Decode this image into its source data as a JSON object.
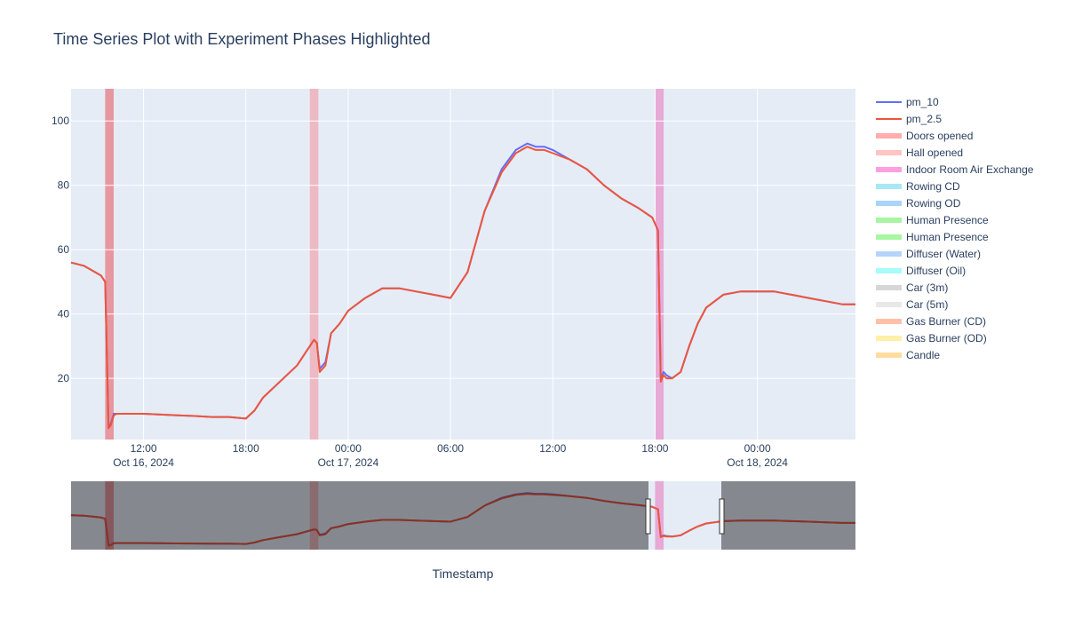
{
  "chart_data": {
    "type": "line",
    "title": "Time Series Plot with Experiment Phases Highlighted",
    "xlabel": "Timestamp",
    "ylabel": "",
    "x_range": [
      "2024-10-16 07:45",
      "2024-10-18 05:45"
    ],
    "ylim": [
      1,
      110
    ],
    "grid": true,
    "legend_position": "right",
    "x_ticks": [
      {
        "x": "2024-10-16 12:00",
        "line1": "12:00",
        "line2": "Oct 16, 2024"
      },
      {
        "x": "2024-10-16 18:00",
        "line1": "18:00",
        "line2": ""
      },
      {
        "x": "2024-10-17 00:00",
        "line1": "00:00",
        "line2": "Oct 17, 2024"
      },
      {
        "x": "2024-10-17 06:00",
        "line1": "06:00",
        "line2": ""
      },
      {
        "x": "2024-10-17 12:00",
        "line1": "12:00",
        "line2": ""
      },
      {
        "x": "2024-10-17 18:00",
        "line1": "18:00",
        "line2": ""
      },
      {
        "x": "2024-10-18 00:00",
        "line1": "00:00",
        "line2": "Oct 18, 2024"
      }
    ],
    "y_ticks": [
      20,
      40,
      60,
      80,
      100
    ],
    "series": [
      {
        "name": "pm_10",
        "color": "#636efa",
        "x": [
          "2024-10-16 07:45",
          "2024-10-16 08:30",
          "2024-10-16 09:30",
          "2024-10-16 09:45",
          "2024-10-16 09:57",
          "2024-10-16 10:05",
          "2024-10-16 10:15",
          "2024-10-16 10:25",
          "2024-10-16 10:35",
          "2024-10-16 10:50",
          "2024-10-16 11:30",
          "2024-10-16 12:00",
          "2024-10-16 14:00",
          "2024-10-16 15:00",
          "2024-10-16 16:00",
          "2024-10-16 17:00",
          "2024-10-16 18:00",
          "2024-10-16 18:30",
          "2024-10-16 19:00",
          "2024-10-16 20:00",
          "2024-10-16 21:00",
          "2024-10-16 21:30",
          "2024-10-16 22:00",
          "2024-10-16 22:10",
          "2024-10-16 22:20",
          "2024-10-16 22:40",
          "2024-10-16 23:00",
          "2024-10-16 23:30",
          "2024-10-17 00:00",
          "2024-10-17 01:00",
          "2024-10-17 02:00",
          "2024-10-17 03:00",
          "2024-10-17 04:00",
          "2024-10-17 05:00",
          "2024-10-17 06:00",
          "2024-10-17 07:00",
          "2024-10-17 08:00",
          "2024-10-17 09:00",
          "2024-10-17 09:50",
          "2024-10-17 10:30",
          "2024-10-17 11:00",
          "2024-10-17 11:30",
          "2024-10-17 12:00",
          "2024-10-17 13:00",
          "2024-10-17 14:00",
          "2024-10-17 15:00",
          "2024-10-17 16:00",
          "2024-10-17 17:00",
          "2024-10-17 17:50",
          "2024-10-17 18:10",
          "2024-10-17 18:20",
          "2024-10-17 18:30",
          "2024-10-17 18:40",
          "2024-10-17 19:00",
          "2024-10-17 19:30",
          "2024-10-17 20:00",
          "2024-10-17 20:30",
          "2024-10-17 21:00",
          "2024-10-17 22:00",
          "2024-10-17 23:00",
          "2024-10-18 00:00",
          "2024-10-18 01:00",
          "2024-10-18 02:00",
          "2024-10-18 03:00",
          "2024-10-18 04:00",
          "2024-10-18 05:00",
          "2024-10-18 05:45"
        ],
        "values": [
          56,
          55,
          52,
          50,
          5,
          6,
          9,
          9,
          9,
          9,
          9,
          9,
          8.5,
          8.3,
          8,
          8,
          7.5,
          10,
          14,
          19,
          24,
          28,
          32,
          31,
          23,
          25,
          34,
          37,
          41,
          45,
          48,
          48,
          47,
          46,
          45,
          53,
          72,
          85,
          91,
          93,
          92,
          92,
          91,
          88,
          85,
          80,
          76,
          73,
          70,
          66,
          20,
          22,
          21,
          20,
          22,
          30,
          37,
          42,
          46,
          47,
          47,
          47,
          46,
          45,
          44,
          43,
          43
        ]
      },
      {
        "name": "pm_2.5",
        "color": "#ef553b",
        "x": [
          "2024-10-16 07:45",
          "2024-10-16 08:30",
          "2024-10-16 09:30",
          "2024-10-16 09:45",
          "2024-10-16 09:57",
          "2024-10-16 10:05",
          "2024-10-16 10:15",
          "2024-10-16 10:25",
          "2024-10-16 10:35",
          "2024-10-16 10:50",
          "2024-10-16 11:30",
          "2024-10-16 12:00",
          "2024-10-16 14:00",
          "2024-10-16 15:00",
          "2024-10-16 16:00",
          "2024-10-16 17:00",
          "2024-10-16 18:00",
          "2024-10-16 18:30",
          "2024-10-16 19:00",
          "2024-10-16 20:00",
          "2024-10-16 21:00",
          "2024-10-16 21:30",
          "2024-10-16 22:00",
          "2024-10-16 22:10",
          "2024-10-16 22:20",
          "2024-10-16 22:40",
          "2024-10-16 23:00",
          "2024-10-16 23:30",
          "2024-10-17 00:00",
          "2024-10-17 01:00",
          "2024-10-17 02:00",
          "2024-10-17 03:00",
          "2024-10-17 04:00",
          "2024-10-17 05:00",
          "2024-10-17 06:00",
          "2024-10-17 07:00",
          "2024-10-17 08:00",
          "2024-10-17 09:00",
          "2024-10-17 09:50",
          "2024-10-17 10:30",
          "2024-10-17 11:00",
          "2024-10-17 11:30",
          "2024-10-17 12:00",
          "2024-10-17 13:00",
          "2024-10-17 14:00",
          "2024-10-17 15:00",
          "2024-10-17 16:00",
          "2024-10-17 17:00",
          "2024-10-17 17:50",
          "2024-10-17 18:10",
          "2024-10-17 18:20",
          "2024-10-17 18:30",
          "2024-10-17 18:40",
          "2024-10-17 19:00",
          "2024-10-17 19:30",
          "2024-10-17 20:00",
          "2024-10-17 20:30",
          "2024-10-17 21:00",
          "2024-10-17 22:00",
          "2024-10-17 23:00",
          "2024-10-18 00:00",
          "2024-10-18 01:00",
          "2024-10-18 02:00",
          "2024-10-18 03:00",
          "2024-10-18 04:00",
          "2024-10-18 05:00",
          "2024-10-18 05:45"
        ],
        "values": [
          56,
          55,
          52,
          50,
          4.5,
          5.5,
          8.5,
          9,
          9,
          9,
          9,
          9,
          8.5,
          8.3,
          8,
          8,
          7.5,
          10,
          14,
          19,
          24,
          28,
          32,
          31,
          22,
          24,
          34,
          37,
          41,
          45,
          48,
          48,
          47,
          46,
          45,
          53,
          72,
          84,
          90,
          92,
          91,
          91,
          90,
          88,
          85,
          80,
          76,
          73,
          70,
          66,
          19,
          21,
          20,
          20,
          22,
          30,
          37,
          42,
          46,
          47,
          47,
          47,
          46,
          45,
          44,
          43,
          43
        ]
      }
    ],
    "phases": [
      {
        "name": "Doors opened",
        "start": "2024-10-16 09:45",
        "end": "2024-10-16 10:15",
        "color": "#e8888f"
      },
      {
        "name": "Hall opened",
        "start": "2024-10-16 21:45",
        "end": "2024-10-16 22:15",
        "color": "#efb0b8"
      },
      {
        "name": "Indoor Room Air Exchange",
        "start": "2024-10-17 18:00",
        "end": "2024-10-17 18:30",
        "color": "#e89dd0"
      }
    ],
    "legend": [
      {
        "name": "pm_10",
        "color": "#636efa",
        "kind": "line"
      },
      {
        "name": "pm_2.5",
        "color": "#ef553b",
        "kind": "line"
      },
      {
        "name": "Doors opened",
        "color": "#ffadad",
        "kind": "band"
      },
      {
        "name": "Hall opened",
        "color": "#ffc4c4",
        "kind": "band"
      },
      {
        "name": "Indoor Room Air Exchange",
        "color": "#ff9ee0",
        "kind": "band"
      },
      {
        "name": "Rowing CD",
        "color": "#a6e8f5",
        "kind": "band"
      },
      {
        "name": "Rowing OD",
        "color": "#a9d4fb",
        "kind": "band"
      },
      {
        "name": "Human Presence",
        "color": "#a8f5a2",
        "kind": "band"
      },
      {
        "name": "Human Presence",
        "color": "#a8f5a2",
        "kind": "band"
      },
      {
        "name": "Diffuser (Water)",
        "color": "#b5d4fb",
        "kind": "band"
      },
      {
        "name": "Diffuser (Oil)",
        "color": "#a6fbfb",
        "kind": "band"
      },
      {
        "name": "Car (3m)",
        "color": "#d6d6d6",
        "kind": "band"
      },
      {
        "name": "Car (5m)",
        "color": "#e8e8e8",
        "kind": "band"
      },
      {
        "name": "Gas Burner (CD)",
        "color": "#ffc0a8",
        "kind": "band"
      },
      {
        "name": "Gas Burner (OD)",
        "color": "#fff0a8",
        "kind": "band"
      },
      {
        "name": "Candle",
        "color": "#ffdca0",
        "kind": "band"
      }
    ]
  }
}
